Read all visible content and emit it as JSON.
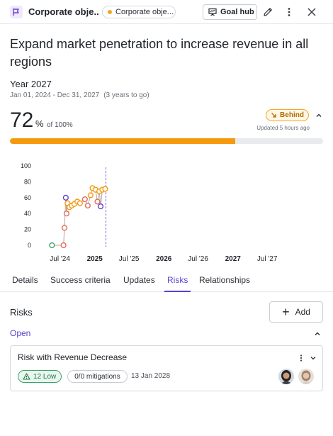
{
  "header": {
    "title": "Corporate obje...",
    "breadcrumb": "Corporate obje...",
    "breadcrumb_dot_color": "#f4a623",
    "goal_hub_label": "Goal hub",
    "icons": [
      "goal-icon",
      "presentation-icon",
      "pencil-icon",
      "more-vertical-icon",
      "close-icon"
    ]
  },
  "goal": {
    "title": "Expand market penetration to increase revenue in all regions",
    "period_label": "Year 2027",
    "date_range": "Jan 01, 2024 - Dec 31, 2027",
    "time_left": "(3 years to go)",
    "progress_value": "72",
    "progress_unit": "%",
    "progress_of": "of 100%",
    "progress_fraction": 0.72,
    "status": "Behind",
    "status_icon": "arrow-down-right-icon",
    "updated": "Updated 5 hours ago",
    "accent_color": "#f59a0f"
  },
  "chart_data": {
    "type": "scatter",
    "y_ticks": [
      "100",
      "80",
      "60",
      "40",
      "20",
      "0"
    ],
    "x_ticks": [
      {
        "label": "Jul '24",
        "bold": false
      },
      {
        "label": "2025",
        "bold": true
      },
      {
        "label": "Jul '25",
        "bold": false
      },
      {
        "label": "2026",
        "bold": true
      },
      {
        "label": "Jul '26",
        "bold": false
      },
      {
        "label": "2027",
        "bold": true
      },
      {
        "label": "Jul '27",
        "bold": false
      }
    ],
    "ylim": [
      0,
      100
    ],
    "xlim": [
      "2024-03-01",
      "2027-12-31"
    ],
    "today": "2025-03-01",
    "grid": false,
    "points": [
      {
        "x": "2024-05-20",
        "y": 0,
        "color": "#3fa36b"
      },
      {
        "x": "2024-07-20",
        "y": 0,
        "color": "#e06c5a"
      },
      {
        "x": "2024-07-25",
        "y": 22,
        "color": "#e06c5a"
      },
      {
        "x": "2024-08-01",
        "y": 60,
        "color": "#6a3fd1"
      },
      {
        "x": "2024-08-05",
        "y": 40,
        "color": "#e06c5a"
      },
      {
        "x": "2024-08-10",
        "y": 53,
        "color": "#f59a0f"
      },
      {
        "x": "2024-08-20",
        "y": 48,
        "color": "#f59a0f"
      },
      {
        "x": "2024-09-01",
        "y": 50,
        "color": "#f59a0f"
      },
      {
        "x": "2024-09-15",
        "y": 52,
        "color": "#f59a0f"
      },
      {
        "x": "2024-10-01",
        "y": 55,
        "color": "#f59a0f"
      },
      {
        "x": "2024-10-15",
        "y": 53,
        "color": "#f59a0f"
      },
      {
        "x": "2024-11-10",
        "y": 58,
        "color": "#e06c5a"
      },
      {
        "x": "2024-11-25",
        "y": 50,
        "color": "#e06c5a"
      },
      {
        "x": "2024-12-10",
        "y": 63,
        "color": "#f59a0f"
      },
      {
        "x": "2024-12-20",
        "y": 72,
        "color": "#f59a0f"
      },
      {
        "x": "2025-01-05",
        "y": 70,
        "color": "#f59a0f"
      },
      {
        "x": "2025-01-15",
        "y": 55,
        "color": "#e06c5a"
      },
      {
        "x": "2025-01-25",
        "y": 68,
        "color": "#f59a0f"
      },
      {
        "x": "2025-02-01",
        "y": 49,
        "color": "#6a3fd1"
      },
      {
        "x": "2025-02-10",
        "y": 70,
        "color": "#f59a0f"
      },
      {
        "x": "2025-02-25",
        "y": 71,
        "color": "#f59a0f"
      }
    ]
  },
  "tabs": [
    {
      "label": "Details",
      "active": false
    },
    {
      "label": "Success criteria",
      "active": false
    },
    {
      "label": "Updates",
      "active": false
    },
    {
      "label": "Risks",
      "active": true
    },
    {
      "label": "Relationships",
      "active": false
    }
  ],
  "risks": {
    "heading": "Risks",
    "add_label": "Add",
    "group_label": "Open",
    "items": [
      {
        "name": "Risk with Revenue Decrease",
        "score_label": "12 Low",
        "score_icon": "warning-triangle-icon",
        "mitigations": "0/0 mitigations",
        "date": "13 Jan 2028",
        "avatars": [
          "avatar-woman-dark-hair",
          "avatar-woman-light-hair"
        ]
      }
    ]
  }
}
